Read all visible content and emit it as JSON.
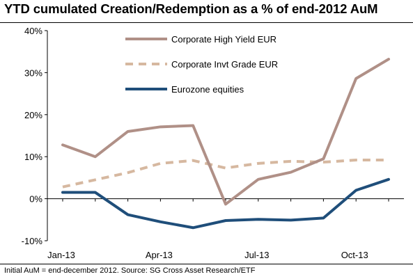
{
  "title": "YTD cumulated Creation/Redemption as a % of end-2012 AuM",
  "source": "Initial AuM = end-december 2012. Source: SG Cross Asset Research/ETF",
  "chart_data": {
    "type": "line",
    "x": [
      "Jan-13",
      "Feb-13",
      "Mar-13",
      "Apr-13",
      "May-13",
      "Jun-13",
      "Jul-13",
      "Aug-13",
      "Sep-13",
      "Oct-13",
      "Nov-13"
    ],
    "xticks": [
      "Jan-13",
      "Apr-13",
      "Jul-13",
      "Oct-13"
    ],
    "yticks": [
      "40%",
      "30%",
      "20%",
      "10%",
      "0%",
      "-10%"
    ],
    "ylim": [
      -10,
      40
    ],
    "ytick_values": [
      40,
      30,
      20,
      10,
      0,
      -10
    ],
    "unit": "%",
    "legend_position": "top-center",
    "series": [
      {
        "name": "Corporate High Yield EUR",
        "color": "#b09087",
        "style": "solid",
        "values": [
          12.8,
          10.0,
          16.0,
          17.1,
          17.4,
          -1.3,
          4.6,
          6.3,
          9.5,
          28.6,
          33.2
        ]
      },
      {
        "name": "Corporate Invt Grade EUR",
        "color": "#d6b8a0",
        "style": "dashed",
        "values": [
          2.8,
          4.5,
          6.2,
          8.4,
          9.1,
          7.3,
          8.4,
          8.9,
          8.7,
          9.2,
          9.2
        ]
      },
      {
        "name": "Eurozone equities",
        "color": "#1f4e7a",
        "style": "solid",
        "values": [
          1.5,
          1.5,
          -3.8,
          -5.5,
          -6.9,
          -5.2,
          -4.9,
          -5.1,
          -4.6,
          2.0,
          4.6
        ]
      }
    ]
  }
}
